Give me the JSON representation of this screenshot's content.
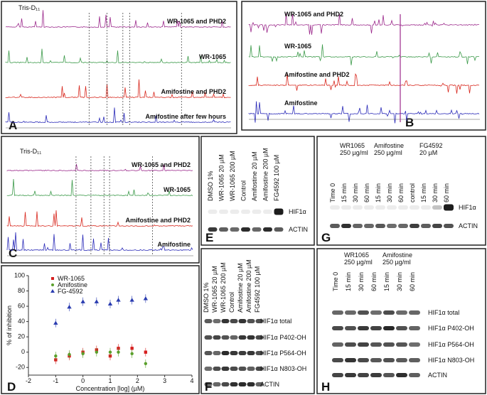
{
  "nmr": [
    {
      "label": "A",
      "reference": "Tris-D₁₁",
      "traces": [
        "WR-1065 and PHD2",
        "WR-1065",
        "Amifostine and PHD2",
        "Amifostine after few hours"
      ]
    },
    {
      "label": "B",
      "traces": [
        "WR-1065 and PHD2",
        "WR-1065",
        "Amifostine and PHD2",
        "Amifostine"
      ]
    },
    {
      "label": "C",
      "reference": "Tris-D₁₁",
      "traces": [
        "WR-1065 and PHD2",
        "WR-1065",
        "Amifostine and PHD2",
        "Amifostine"
      ]
    }
  ],
  "blots": [
    {
      "label": "E",
      "groups": [],
      "lanes": [
        "DMSO 1%",
        "WR-1065 20 µM",
        "WR-1065 200 µM",
        "Control",
        "Amifostine 20 µM",
        "Amifostine 200 µM",
        "FG4592 100 µM"
      ],
      "rows": [
        "HIF1α",
        "ACTIN"
      ]
    },
    {
      "label": "G",
      "groups": [
        {
          "name": "WR1065",
          "dose": "250 µg/ml"
        },
        {
          "name": "Amifostine",
          "dose": "250 µg/ml"
        },
        {
          "name": "FG4592",
          "dose": "20 µM"
        }
      ],
      "lanes": [
        "Time 0",
        "15 min",
        "30 min",
        "60 min",
        "15 min",
        "30 min",
        "60 min",
        "control",
        "15 min",
        "30 min",
        "60 min"
      ],
      "rows": [
        "HIF1α",
        "ACTIN"
      ]
    },
    {
      "label": "F",
      "groups": [],
      "lanes": [
        "DMSO 1%",
        "WR-1065 20 µM",
        "WR-1065 200 µM",
        "Control",
        "Amifostine 20 µM",
        "Amifostine 200 µM",
        "FG4592 100 µM"
      ],
      "rows": [
        "HIF1α total",
        "HIF1α P402-OH",
        "HIF1α P564-OH",
        "HIF1α N803-OH",
        "ACTIN"
      ]
    },
    {
      "label": "H",
      "groups": [
        {
          "name": "WR1065",
          "dose": "250 µg/ml"
        },
        {
          "name": "Amifostine",
          "dose": "250 µg/ml"
        }
      ],
      "lanes": [
        "Time 0",
        "15 min",
        "30 min",
        "60 min",
        "15 min",
        "30 min",
        "60 min"
      ],
      "rows": [
        "HIF1α total",
        "HIF1α P402-OH",
        "HIF1α P564-OH",
        "HIF1α N803-OH",
        "ACTIN"
      ]
    }
  ],
  "chart_data": {
    "label": "D",
    "type": "scatter",
    "x_label": "Concentration [log] (µM)",
    "y_label": "% of inhibition",
    "xlim": [
      -2,
      4
    ],
    "xticks": [
      -2,
      -1,
      0,
      1,
      2,
      3,
      4
    ],
    "ylim": [
      -30,
      100
    ],
    "yticks": [
      -20,
      0,
      20,
      40,
      60,
      80,
      100
    ],
    "series": [
      {
        "name": "WR-1065",
        "color": "#d62020",
        "marker": "square",
        "x": [
          -1,
          -0.5,
          0,
          0.5,
          1,
          1.3,
          1.8,
          2.3
        ],
        "values": [
          -10,
          -5,
          0,
          3,
          -5,
          5,
          5,
          0
        ]
      },
      {
        "name": "Amifostine",
        "color": "#5aa02c",
        "marker": "circle",
        "x": [
          -1,
          -0.5,
          0,
          0.5,
          1,
          1.3,
          1.8,
          2.3
        ],
        "values": [
          -5,
          -3,
          -2,
          0,
          0,
          0,
          -2,
          -15
        ]
      },
      {
        "name": "FG-4592",
        "color": "#2a3cb0",
        "marker": "triangle",
        "x": [
          -1,
          -0.5,
          0,
          0.5,
          1,
          1.3,
          1.8,
          2.3
        ],
        "values": [
          38,
          59,
          66,
          66,
          63,
          68,
          68,
          70
        ]
      }
    ]
  }
}
